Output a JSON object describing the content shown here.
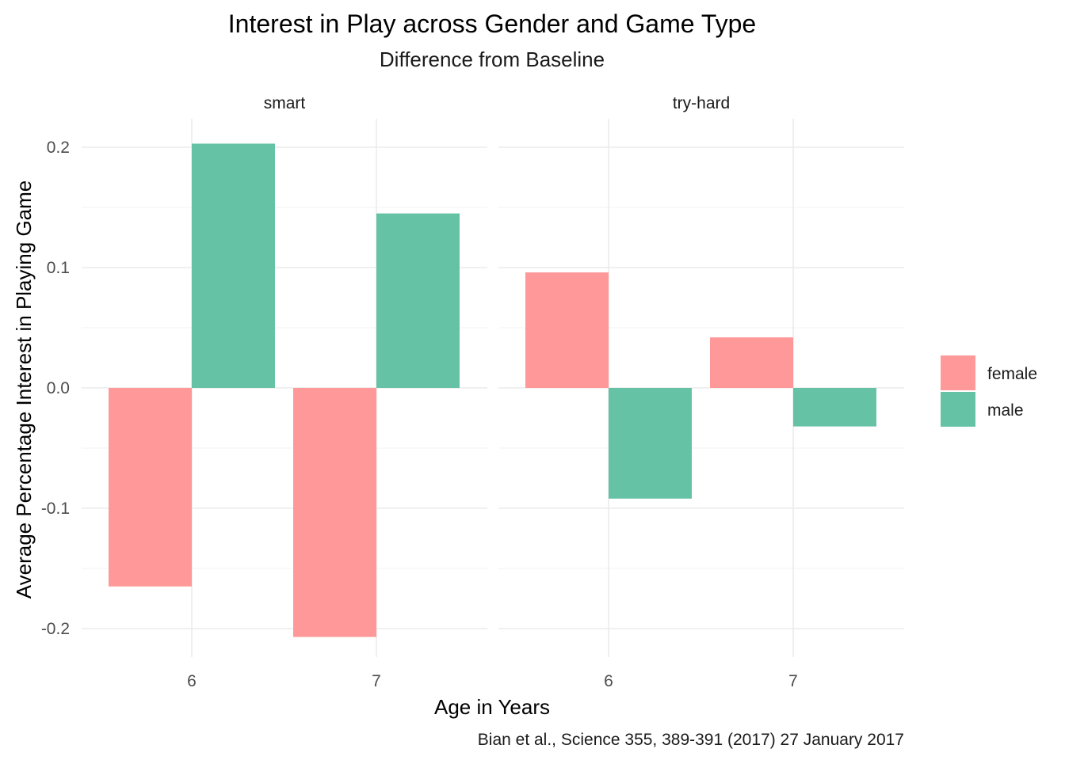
{
  "chart_data": {
    "type": "bar",
    "title": "Interest in Play across Gender and Game Type",
    "subtitle": "Difference from Baseline",
    "xlabel": "Age in Years",
    "ylabel": "Average Percentage Interest in Playing Game",
    "caption": "Bian et al., Science 355, 389-391 (2017) 27 January 2017",
    "categories": [
      "6",
      "7"
    ],
    "ylim": [
      -0.22,
      0.22
    ],
    "yticks": [
      -0.2,
      -0.1,
      0.0,
      0.1,
      0.2
    ],
    "ytick_labels": [
      "-0.2",
      "-0.1",
      "0.0",
      "0.1",
      "0.2"
    ],
    "grid": true,
    "legend_position": "right",
    "legend": [
      {
        "name": "female",
        "color": "#ff9999"
      },
      {
        "name": "male",
        "color": "#66c2a5"
      }
    ],
    "panels": [
      {
        "label": "smart",
        "series": [
          {
            "name": "female",
            "values": [
              -0.165,
              -0.207
            ]
          },
          {
            "name": "male",
            "values": [
              0.203,
              0.145
            ]
          }
        ]
      },
      {
        "label": "try-hard",
        "series": [
          {
            "name": "female",
            "values": [
              0.096,
              0.042
            ]
          },
          {
            "name": "male",
            "values": [
              -0.092,
              -0.032
            ]
          }
        ]
      }
    ]
  }
}
